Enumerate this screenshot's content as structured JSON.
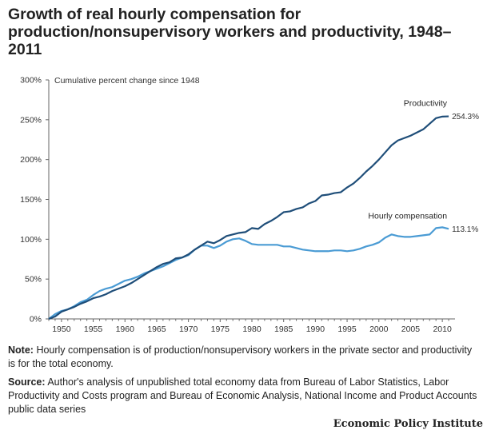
{
  "title": "Growth of real hourly compensation for production/nonsupervisory workers and productivity, 1948–2011",
  "notes": {
    "note_label": "Note:",
    "note_text": "Hourly compensation is of production/nonsupervisory workers in the private sector and productivity is for the total economy.",
    "source_label": "Source:",
    "source_text": "Author's analysis of unpublished total economy data from Bureau of Labor Statistics, Labor Productivity and Costs program and Bureau of Economic Analysis, National Income and Product Accounts public data series"
  },
  "brand": "Economic Policy Institute",
  "colors": {
    "productivity": "#1f4e79",
    "compensation": "#4a9bd4",
    "axis": "#666666"
  },
  "chart_data": {
    "type": "line",
    "ylabel": "Cumulative percent change since 1948",
    "ylim": [
      0,
      300
    ],
    "xlim": [
      1948,
      2011
    ],
    "y_ticks": [
      0,
      50,
      100,
      150,
      200,
      250,
      300
    ],
    "y_tick_labels": [
      "0%",
      "50%",
      "100%",
      "150%",
      "200%",
      "250%",
      "300%"
    ],
    "x_ticks": [
      1950,
      1955,
      1960,
      1965,
      1970,
      1975,
      1980,
      1985,
      1990,
      1995,
      2000,
      2005,
      2010
    ],
    "x_tick_labels": [
      "1950",
      "1955",
      "1960",
      "1965",
      "1970",
      "1975",
      "1980",
      "1985",
      "1990",
      "1995",
      "2000",
      "2005",
      "2010"
    ],
    "grid": false,
    "series": [
      {
        "name": "Productivity",
        "end_label": "254.3%",
        "x": [
          1948,
          1949,
          1950,
          1951,
          1952,
          1953,
          1954,
          1955,
          1956,
          1957,
          1958,
          1959,
          1960,
          1961,
          1962,
          1963,
          1964,
          1965,
          1966,
          1967,
          1968,
          1969,
          1970,
          1971,
          1972,
          1973,
          1974,
          1975,
          1976,
          1977,
          1978,
          1979,
          1980,
          1981,
          1982,
          1983,
          1984,
          1985,
          1986,
          1987,
          1988,
          1989,
          1990,
          1991,
          1992,
          1993,
          1994,
          1995,
          1996,
          1997,
          1998,
          1999,
          2000,
          2001,
          2002,
          2003,
          2004,
          2005,
          2006,
          2007,
          2008,
          2009,
          2010,
          2011
        ],
        "y": [
          0,
          3,
          9,
          12,
          15,
          19,
          22,
          26,
          28,
          31,
          35,
          38,
          41,
          45,
          50,
          55,
          60,
          65,
          69,
          71,
          76,
          77,
          81,
          87,
          92,
          97,
          95,
          99,
          104,
          106,
          108,
          109,
          114,
          113,
          119,
          123,
          128,
          134,
          135,
          138,
          140,
          145,
          148,
          155,
          156,
          158,
          159,
          165,
          170,
          177,
          185,
          192,
          200,
          209,
          218,
          224,
          227,
          230,
          234,
          238,
          245,
          252,
          254,
          254.3
        ]
      },
      {
        "name": "Hourly compensation",
        "end_label": "113.1%",
        "x": [
          1948,
          1949,
          1950,
          1951,
          1952,
          1953,
          1954,
          1955,
          1956,
          1957,
          1958,
          1959,
          1960,
          1961,
          1962,
          1963,
          1964,
          1965,
          1966,
          1967,
          1968,
          1969,
          1970,
          1971,
          1972,
          1973,
          1974,
          1975,
          1976,
          1977,
          1978,
          1979,
          1980,
          1981,
          1982,
          1983,
          1984,
          1985,
          1986,
          1987,
          1988,
          1989,
          1990,
          1991,
          1992,
          1993,
          1994,
          1995,
          1996,
          1997,
          1998,
          1999,
          2000,
          2001,
          2002,
          2003,
          2004,
          2005,
          2006,
          2007,
          2008,
          2009,
          2010,
          2011
        ],
        "y": [
          0,
          6,
          10,
          12,
          16,
          21,
          24,
          30,
          35,
          38,
          40,
          44,
          48,
          50,
          53,
          57,
          60,
          63,
          66,
          70,
          74,
          77,
          80,
          87,
          92,
          92,
          89,
          92,
          97,
          100,
          101,
          98,
          94,
          93,
          93,
          93,
          93,
          91,
          91,
          89,
          87,
          86,
          85,
          85,
          85,
          86,
          86,
          85,
          86,
          88,
          91,
          93,
          96,
          102,
          106,
          104,
          103,
          103,
          104,
          105,
          106,
          114,
          115,
          113.1
        ]
      }
    ]
  }
}
